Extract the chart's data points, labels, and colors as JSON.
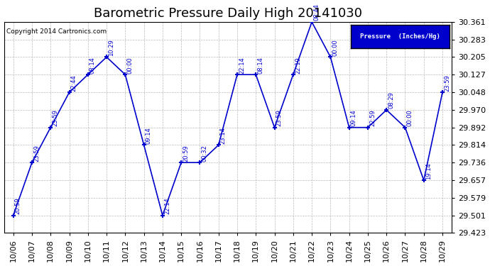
{
  "title": "Barometric Pressure Daily High 20141030",
  "copyright": "Copyright 2014 Cartronics.com",
  "legend_label": "Pressure  (Inches/Hg)",
  "ylim": [
    29.423,
    30.361
  ],
  "yticks": [
    29.423,
    29.501,
    29.579,
    29.657,
    29.736,
    29.814,
    29.892,
    29.97,
    30.048,
    30.127,
    30.205,
    30.283,
    30.361
  ],
  "dates": [
    "10/06",
    "10/07",
    "10/08",
    "10/09",
    "10/10",
    "10/11",
    "10/12",
    "10/13",
    "10/14",
    "10/15",
    "10/16",
    "10/17",
    "10/18",
    "10/19",
    "10/20",
    "10/21",
    "10/22",
    "10/23",
    "10/24",
    "10/25",
    "10/26",
    "10/27",
    "10/28",
    "10/29"
  ],
  "values": [
    29.501,
    29.736,
    29.892,
    30.048,
    30.127,
    30.205,
    30.127,
    29.814,
    29.501,
    29.736,
    29.736,
    29.814,
    30.127,
    30.127,
    29.892,
    30.127,
    30.361,
    30.205,
    29.892,
    29.892,
    29.97,
    29.892,
    29.657,
    30.048
  ],
  "time_labels": [
    "20:59",
    "23:59",
    "23:59",
    "22:44",
    "08:14",
    "10:29",
    "00:00",
    "09:14",
    "22:14",
    "20:59",
    "00:32",
    "23:14",
    "22:14",
    "08:14",
    "23:59",
    "22:19",
    "08:44",
    "00:00",
    "09:14",
    "22:59",
    "08:29",
    "00:00",
    "19:14",
    "23:59"
  ],
  "line_color": "#0000cc",
  "marker_color": "#0000cc",
  "bg_color": "#ffffff",
  "grid_color": "#aaaaaa",
  "title_fontsize": 13,
  "tick_fontsize": 8,
  "legend_bg": "#0000cc",
  "legend_text_color": "#ffffff",
  "figwidth": 6.9,
  "figheight": 3.75,
  "dpi": 100
}
